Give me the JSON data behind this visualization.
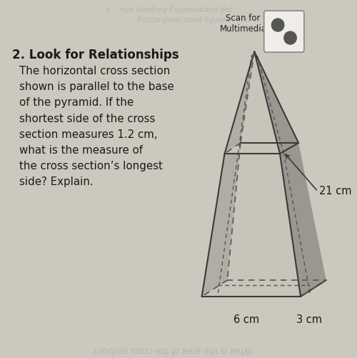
{
  "bg_color": "#ccc8be",
  "title_text": "2. Look for Relationships",
  "body_text": "The horizontal cross section\nshown is parallel to the base\nof the pyramid. If the\nshortest side of the cross\nsection measures 1.2 cm,\nwhat is the measure of\nthe cross section’s longest\nside? Explain.",
  "scan_label": "Scan for\nMultimedia",
  "label_21cm": "21 cm",
  "label_6cm": "6 cm",
  "label_3cm": "3 cm",
  "faint_top1": "e    nyó bimếryg Ếluqenəbərəl ếnt",
  "faint_top2": "Rectangular solid figures",
  "bottom_faint": "What is the area of the cross section?",
  "text_color": "#1a1a1a",
  "faint_color": "#aaaaaa",
  "pyramid_front": "#c8c4ba",
  "pyramid_left": "#b0ada4",
  "pyramid_right": "#9a9790",
  "pyramid_top_cs": "#c0bdb4",
  "edge_color": "#3a3a3a",
  "dashed_color": "#555555"
}
